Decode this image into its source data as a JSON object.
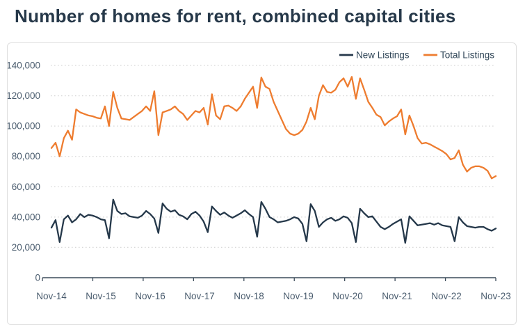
{
  "title": "Number of homes for rent, combined capital cities",
  "chart_data": {
    "type": "line",
    "title": "Number of homes for rent, combined capital cities",
    "xlabel": "",
    "ylabel": "",
    "x_axis": {
      "tick_labels": [
        "Nov-14",
        "Nov-15",
        "Nov-16",
        "Nov-17",
        "Nov-18",
        "Nov-19",
        "Nov-20",
        "Nov-21",
        "Nov-22",
        "Nov-23"
      ],
      "start_month": "Nov-14",
      "end_month": "Nov-23",
      "frequency": "monthly",
      "n_points": 109
    },
    "y_axis": {
      "tick_labels_top_to_bottom": [
        "140,000",
        "120,000",
        "100,000",
        "80,000",
        "60,000",
        "40,000",
        "20,000",
        "0"
      ],
      "min": 0,
      "max": 140000,
      "tick_step": 20000,
      "gridlines": "dotted horizontal"
    },
    "legend": {
      "position": "top-right-inside",
      "entries": [
        {
          "label": "New Listings",
          "color": "#25384a"
        },
        {
          "label": "Total Listings",
          "color": "#ee7c2f"
        }
      ]
    },
    "series": [
      {
        "name": "New Listings",
        "color": "#25384a",
        "units": "thousands of homes",
        "values_thousands": [
          33,
          38,
          23.5,
          38.5,
          41,
          36.5,
          38.5,
          42,
          40,
          41.5,
          41,
          40,
          38.5,
          38,
          26,
          51.5,
          44,
          42,
          42.5,
          40.5,
          40,
          39.5,
          41,
          44,
          42,
          39,
          29.5,
          49,
          45.5,
          43.5,
          44.5,
          41.5,
          40.5,
          38.5,
          42,
          43.5,
          41,
          37,
          30,
          47,
          44,
          41.5,
          43,
          41,
          39.5,
          41,
          42.5,
          44.5,
          42,
          40,
          27,
          50,
          45.5,
          40,
          38.5,
          36.5,
          37,
          37.5,
          38.5,
          40,
          39,
          35.5,
          24,
          48.5,
          44,
          33.5,
          36.5,
          38.5,
          39.5,
          37.5,
          38.5,
          40.5,
          39.5,
          36,
          23.5,
          45.5,
          42.5,
          40,
          40.5,
          37,
          33.5,
          32,
          33.5,
          35.5,
          37,
          38.5,
          23,
          40.5,
          37.5,
          34.5,
          35,
          35.5,
          36,
          35,
          36,
          34.5,
          34,
          33.5,
          24,
          40,
          36.5,
          34,
          33.5,
          33,
          33.5,
          33.5,
          32,
          31,
          32.5
        ]
      },
      {
        "name": "Total Listings",
        "color": "#ee7c2f",
        "units": "thousands of homes",
        "values_thousands": [
          85.5,
          89,
          80,
          92,
          97,
          91,
          111,
          109,
          108,
          107,
          106.5,
          105.5,
          105,
          113,
          100,
          122.5,
          112,
          105,
          104.5,
          104,
          106,
          108,
          110,
          113,
          110,
          123,
          94,
          109,
          110,
          111,
          113,
          110,
          108,
          104,
          107,
          110,
          109,
          112,
          101,
          121,
          107,
          104.5,
          113,
          113.5,
          112,
          110,
          113,
          118,
          122,
          126,
          112,
          132,
          126,
          124.5,
          116,
          110,
          104,
          98,
          95,
          94,
          95,
          97.5,
          103,
          112,
          104.5,
          120,
          127,
          122.5,
          122,
          124,
          129,
          131.5,
          126,
          132.5,
          118,
          131.5,
          124,
          116,
          112,
          107.5,
          106,
          100.5,
          103,
          105,
          106.5,
          111,
          94.5,
          107,
          100,
          92,
          88.5,
          89,
          88,
          86.5,
          85,
          83.5,
          81.5,
          78,
          79,
          84,
          74.5,
          70,
          72.5,
          73.5,
          73.5,
          72.5,
          70.5,
          65.5,
          67
        ]
      }
    ],
    "colors": {
      "accent_navy": "#25384a",
      "accent_orange": "#ee7c2f",
      "gridline": "#d8d8d8",
      "axis": "#3c4c5a",
      "tick_text": "#4a5c6e",
      "title_text": "#263849",
      "card_border": "#dedede",
      "background": "#ffffff"
    }
  }
}
